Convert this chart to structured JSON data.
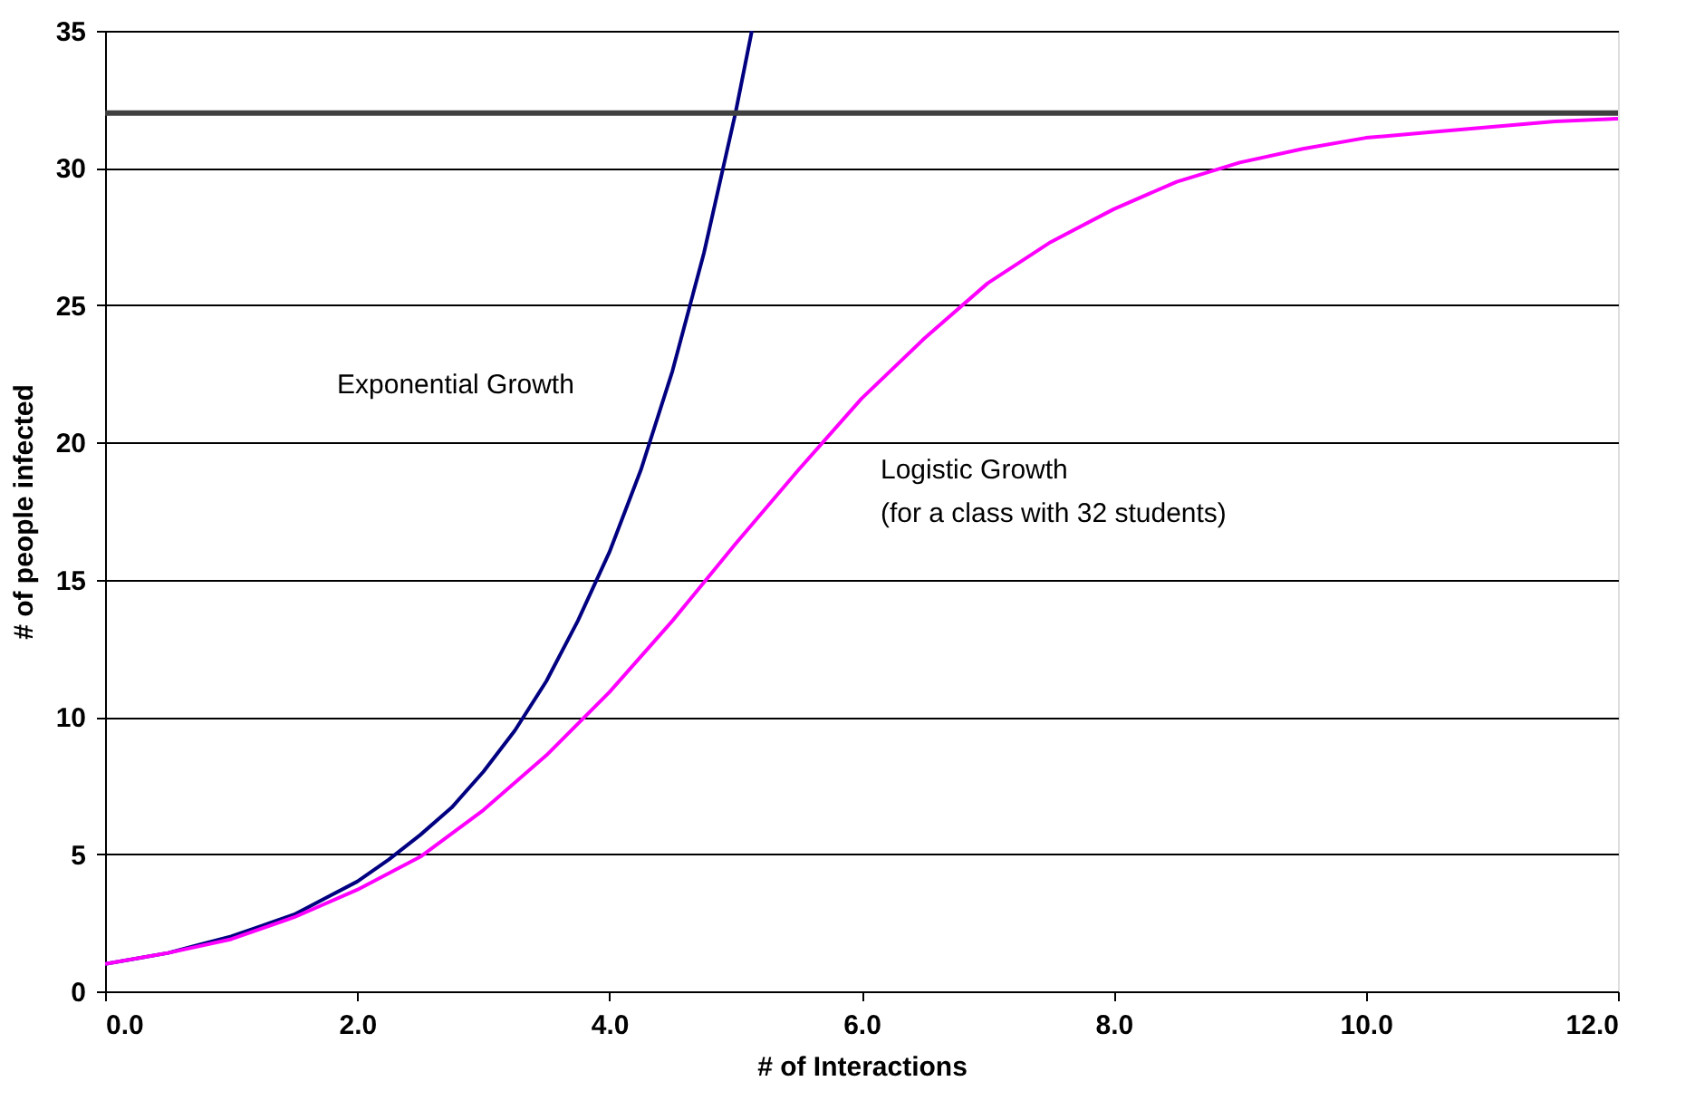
{
  "chart_data": {
    "type": "line",
    "xlabel": "# of Interactions",
    "ylabel": "# of people infected",
    "xlim": [
      0,
      12
    ],
    "ylim": [
      0,
      35
    ],
    "xticks": [
      {
        "value": 0,
        "label": "0.0"
      },
      {
        "value": 2,
        "label": "2.0"
      },
      {
        "value": 4,
        "label": "4.0"
      },
      {
        "value": 6,
        "label": "6.0"
      },
      {
        "value": 8,
        "label": "8.0"
      },
      {
        "value": 10,
        "label": "10.0"
      },
      {
        "value": 12,
        "label": "12.0"
      }
    ],
    "yticks": [
      0,
      5,
      10,
      15,
      20,
      25,
      30,
      35
    ],
    "grid": "y",
    "marker": "none",
    "line_style": "solid",
    "series": [
      {
        "color": "#000080",
        "x": [
          0,
          0.25,
          0.5,
          0.75,
          1,
          1.25,
          1.5,
          1.75,
          2,
          2.25,
          2.5,
          2.75,
          3,
          3.25,
          3.5,
          3.75,
          4,
          4.25,
          4.5,
          4.75,
          5,
          5.13
        ],
        "values": [
          1,
          1.2,
          1.4,
          1.7,
          2,
          2.4,
          2.8,
          3.4,
          4,
          4.8,
          5.7,
          6.7,
          8,
          9.5,
          11.3,
          13.5,
          16,
          19,
          22.6,
          26.9,
          32,
          35
        ]
      },
      {
        "color": "#ff00ff",
        "x": [
          0,
          0.5,
          1,
          1.5,
          2,
          2.5,
          3,
          3.5,
          4,
          4.5,
          5,
          5.5,
          6,
          6.5,
          7,
          7.5,
          8,
          8.5,
          9,
          9.5,
          10,
          10.5,
          11,
          11.5,
          12
        ],
        "values": [
          1,
          1.4,
          1.9,
          2.7,
          3.7,
          4.9,
          6.6,
          8.6,
          10.9,
          13.5,
          16.3,
          19,
          21.6,
          23.8,
          25.8,
          27.3,
          28.5,
          29.5,
          30.2,
          30.7,
          31.1,
          31.3,
          31.5,
          31.7,
          31.8
        ]
      }
    ],
    "ref_lines": [
      {
        "axis": "y",
        "value": 32,
        "color": "#404040"
      }
    ],
    "annotations": [
      "Exponential Growth",
      "Logistic Growth",
      "(for a class with 32 students)"
    ]
  }
}
